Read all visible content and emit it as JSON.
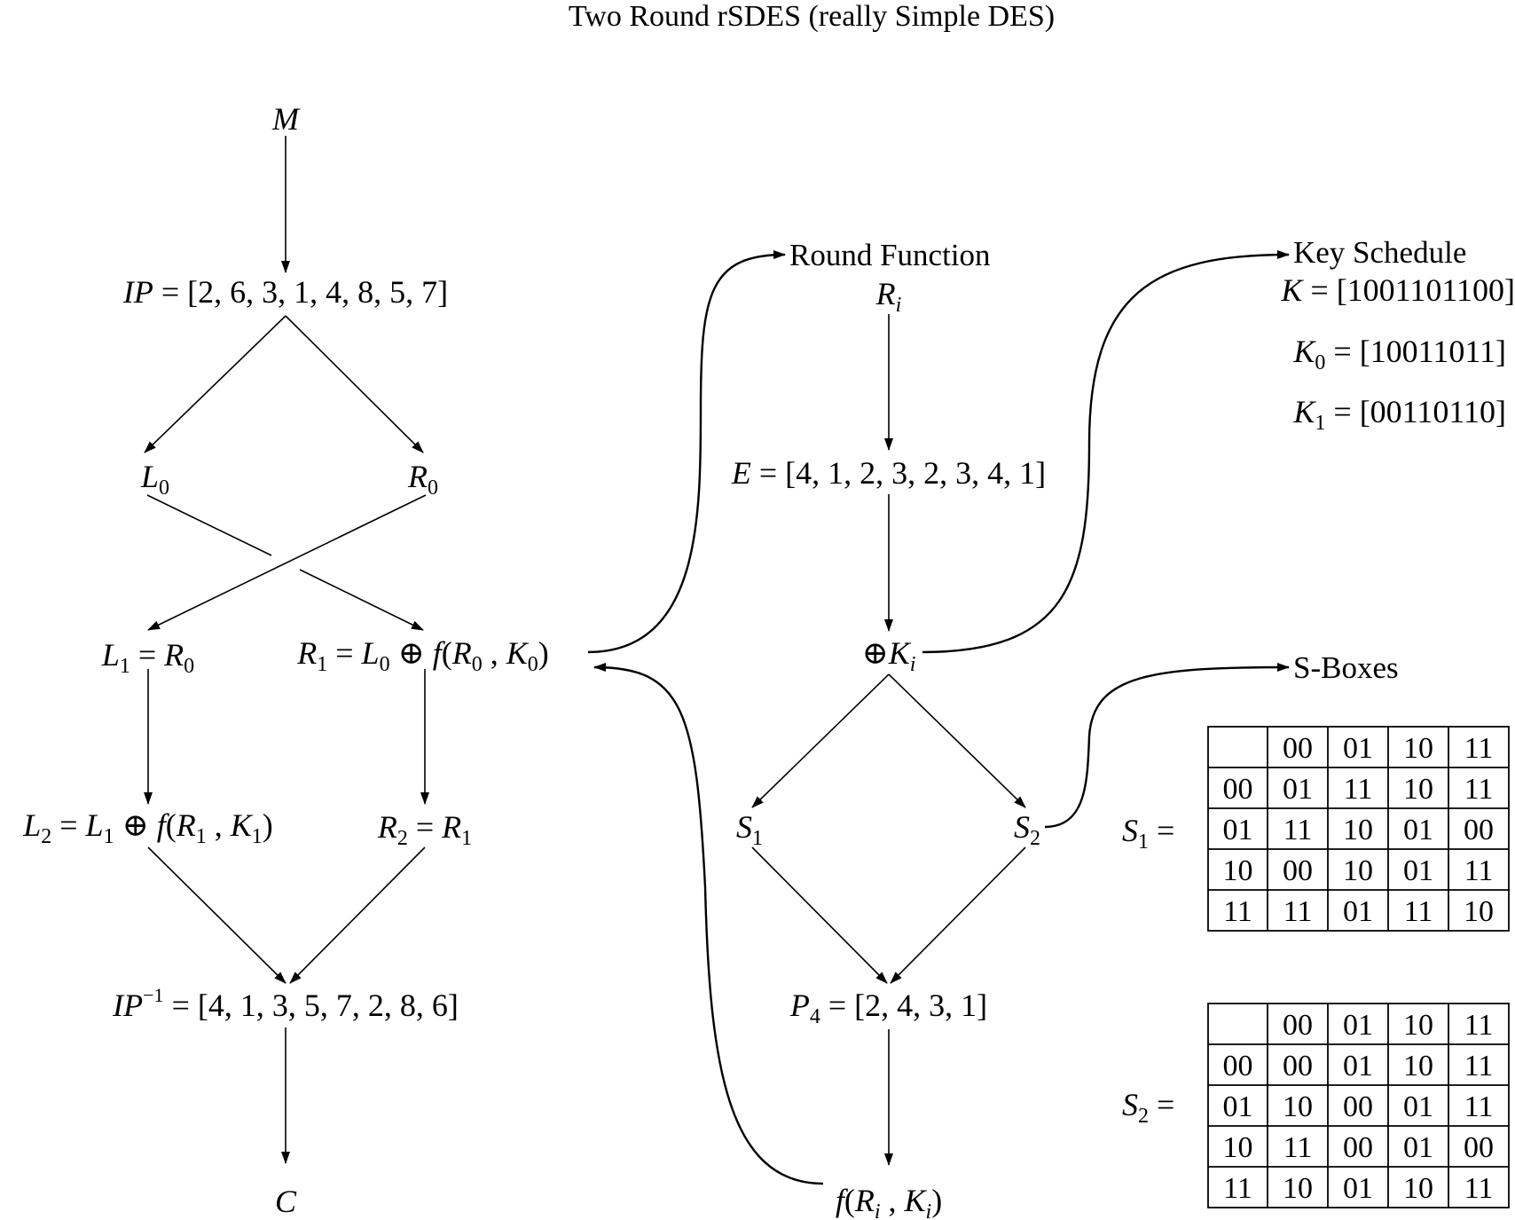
{
  "title": "Two Round rSDES (really Simple DES)",
  "main": {
    "M": "M",
    "IP": "IP = [2, 6, 3, 1, 4, 8, 5, 7]",
    "L0": "L0",
    "R0": "R0",
    "L1": "L1 = R0",
    "R1": "R1 = L0 ⊕ f(R0 , K0)",
    "L2": "L2 = L1 ⊕ f(R1 , K1)",
    "R2": "R2 = R1",
    "IPinv": "IP−1 = [4, 1, 3, 5, 7, 2, 8, 6]",
    "C": "C"
  },
  "round_function": {
    "heading": "Round Function",
    "Ri": "Ri",
    "E": "E = [4, 1, 2, 3, 2, 3, 4, 1]",
    "xorK": "⊕Ki",
    "S1": "S1",
    "S2": "S2",
    "P4": "P4 = [2, 4, 3, 1]",
    "f": "f(Ri , Ki)"
  },
  "key_schedule": {
    "heading": "Key Schedule",
    "K": "K = [1001101100]",
    "K0": "K0 = [10011011]",
    "K1": "K1 = [00110110]"
  },
  "sboxes": {
    "heading": "S-Boxes",
    "s1_label": "S1 =",
    "s2_label": "S2 =",
    "s1": [
      [
        "",
        "00",
        "01",
        "10",
        "11"
      ],
      [
        "00",
        "01",
        "11",
        "10",
        "11"
      ],
      [
        "01",
        "11",
        "10",
        "01",
        "00"
      ],
      [
        "10",
        "00",
        "10",
        "01",
        "11"
      ],
      [
        "11",
        "11",
        "01",
        "11",
        "10"
      ]
    ],
    "s2": [
      [
        "",
        "00",
        "01",
        "10",
        "11"
      ],
      [
        "00",
        "00",
        "01",
        "10",
        "11"
      ],
      [
        "01",
        "10",
        "00",
        "01",
        "11"
      ],
      [
        "10",
        "11",
        "00",
        "01",
        "00"
      ],
      [
        "11",
        "10",
        "01",
        "10",
        "11"
      ]
    ]
  }
}
